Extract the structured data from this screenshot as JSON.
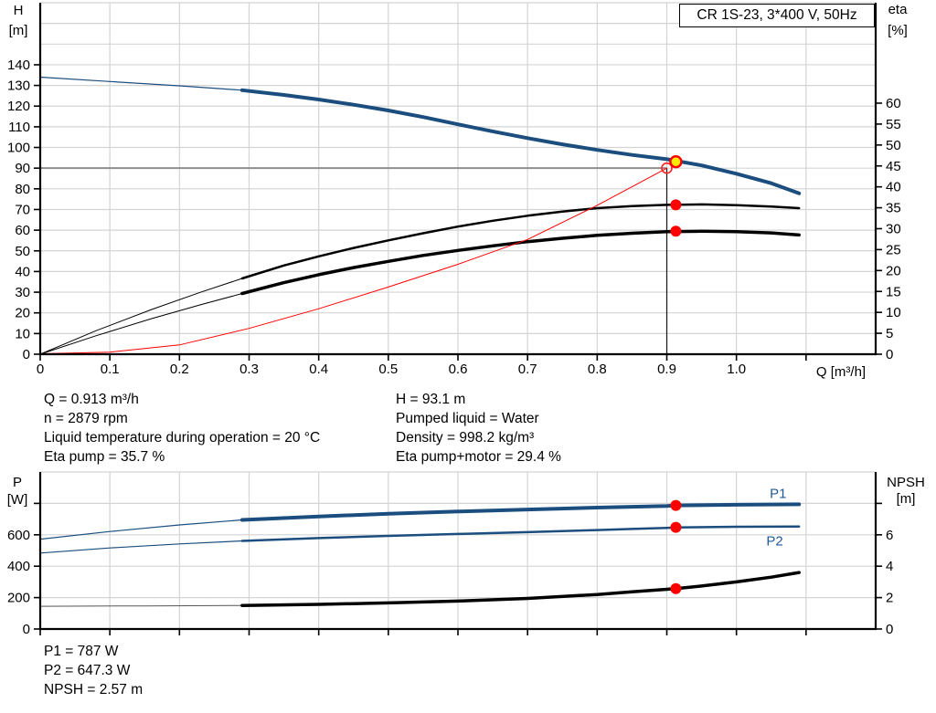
{
  "title_box": {
    "text": "CR 1S-23, 3*400 V, 50Hz"
  },
  "info_top_left": {
    "line1": "Q = 0.913 m³/h",
    "line2": "n = 2879 rpm",
    "line3": "Liquid temperature during operation = 20 °C",
    "line4": "Eta pump = 35.7 %"
  },
  "info_top_right": {
    "line1": "H = 93.1 m",
    "line2": "Pumped liquid = Water",
    "line3": "Density = 998.2 kg/m³",
    "line4": "Eta pump+motor = 29.4 %"
  },
  "info_bottom": {
    "line1": "P1 = 787 W",
    "line2": "P2 = 647.3 W",
    "line3": "NPSH = 2.57 m"
  },
  "colors": {
    "curve_blue": "#1b4e7e",
    "label_blue": "#1f5a96",
    "curve_black": "#000000",
    "curve_red": "#ff0000",
    "marker_red": "#ff0000",
    "marker_yellow": "#ffeb00",
    "grid": "#d4d4d4",
    "crosshair_h": "#8f8f8f",
    "crosshair_v": "#1a1a1a"
  },
  "chart_data": [
    {
      "type": "line",
      "name": "chart-qh-eta",
      "x_axis": {
        "label": "Q [m³/h]",
        "min": 0,
        "max": 1.2,
        "tick_step": 0.1,
        "tick_max": 1.1,
        "label_max": 1.0,
        "decimals": 1
      },
      "left_axis": {
        "label": "H",
        "unit": "[m]",
        "min": 0,
        "max": 170,
        "tick_step": 10,
        "tick_max": 140,
        "label_max": 140,
        "decimals": 0
      },
      "right_axis": {
        "label": "eta",
        "unit": "[%]",
        "min": 0,
        "max": 84,
        "tick_step": 5,
        "tick_max": 60,
        "label_max": 60,
        "decimals": 0
      },
      "crosshair": {
        "x": 0.9,
        "value": 90,
        "axis": "left"
      },
      "series": [
        {
          "name": "head-curve-thin",
          "axis": "left",
          "color": "#1b4e7e",
          "width": 1.2,
          "points": [
            [
              0,
              134
            ],
            [
              0.1,
              131.9
            ],
            [
              0.2,
              129.8
            ],
            [
              0.29,
              127.7
            ]
          ]
        },
        {
          "name": "head-curve",
          "axis": "left",
          "color": "#1b4e7e",
          "width": 4,
          "points": [
            [
              0.29,
              127.7
            ],
            [
              0.35,
              125.4
            ],
            [
              0.4,
              123.2
            ],
            [
              0.45,
              120.7
            ],
            [
              0.5,
              117.9
            ],
            [
              0.55,
              114.7
            ],
            [
              0.6,
              111.2
            ],
            [
              0.65,
              107.8
            ],
            [
              0.7,
              104.5
            ],
            [
              0.75,
              101.5
            ],
            [
              0.8,
              98.8
            ],
            [
              0.85,
              96.4
            ],
            [
              0.9,
              94.3
            ],
            [
              0.95,
              91.3
            ],
            [
              1.0,
              87.3
            ],
            [
              1.05,
              82.7
            ],
            [
              1.09,
              77.8
            ]
          ]
        },
        {
          "name": "eta-pump-curve-thin",
          "axis": "right",
          "color": "#000000",
          "width": 1,
          "points": [
            [
              0,
              0
            ],
            [
              0.08,
              5.6
            ],
            [
              0.16,
              10.7
            ],
            [
              0.23,
              14.8
            ],
            [
              0.29,
              18.1
            ]
          ]
        },
        {
          "name": "eta-pump-curve",
          "axis": "right",
          "color": "#000000",
          "width": 2.5,
          "points": [
            [
              0.29,
              18.1
            ],
            [
              0.35,
              21.2
            ],
            [
              0.4,
              23.4
            ],
            [
              0.45,
              25.4
            ],
            [
              0.5,
              27.2
            ],
            [
              0.55,
              28.9
            ],
            [
              0.6,
              30.5
            ],
            [
              0.65,
              31.9
            ],
            [
              0.7,
              33.1
            ],
            [
              0.75,
              34.1
            ],
            [
              0.8,
              34.9
            ],
            [
              0.85,
              35.4
            ],
            [
              0.9,
              35.7
            ],
            [
              0.95,
              35.8
            ],
            [
              1.0,
              35.6
            ],
            [
              1.05,
              35.3
            ],
            [
              1.09,
              34.9
            ]
          ]
        },
        {
          "name": "eta-pump-motor-curve-thin",
          "axis": "right",
          "color": "#000000",
          "width": 1,
          "points": [
            [
              0,
              0
            ],
            [
              0.08,
              4.4
            ],
            [
              0.16,
              8.5
            ],
            [
              0.23,
              11.8
            ],
            [
              0.29,
              14.5
            ]
          ]
        },
        {
          "name": "eta-pump-motor-curve",
          "axis": "right",
          "color": "#000000",
          "width": 3.5,
          "points": [
            [
              0.29,
              14.5
            ],
            [
              0.35,
              17.1
            ],
            [
              0.4,
              19.0
            ],
            [
              0.45,
              20.7
            ],
            [
              0.5,
              22.2
            ],
            [
              0.55,
              23.6
            ],
            [
              0.6,
              24.8
            ],
            [
              0.65,
              25.9
            ],
            [
              0.7,
              26.9
            ],
            [
              0.75,
              27.7
            ],
            [
              0.8,
              28.4
            ],
            [
              0.85,
              28.9
            ],
            [
              0.9,
              29.3
            ],
            [
              0.95,
              29.4
            ],
            [
              1.0,
              29.3
            ],
            [
              1.05,
              29.0
            ],
            [
              1.09,
              28.5
            ]
          ]
        },
        {
          "name": "duty-eta-red-curve",
          "axis": "left",
          "color": "#ff0000",
          "width": 1,
          "points": [
            [
              0,
              0.2
            ],
            [
              0.1,
              1
            ],
            [
              0.2,
              4.5
            ],
            [
              0.3,
              12.5
            ],
            [
              0.4,
              22
            ],
            [
              0.5,
              32.5
            ],
            [
              0.6,
              43.5
            ],
            [
              0.7,
              55.5
            ],
            [
              0.8,
              72
            ],
            [
              0.9,
              90
            ]
          ]
        }
      ],
      "markers": [
        {
          "name": "duty-target-ring",
          "shape": "ring",
          "x": 0.9,
          "value": 90,
          "axis": "left",
          "color": "#ff2020",
          "r": 5.5
        },
        {
          "name": "duty-point",
          "shape": "duty",
          "x": 0.913,
          "value": 93.1,
          "axis": "left",
          "fill": "#ffeb00",
          "ring": "#ff0000",
          "r": 6
        },
        {
          "name": "eta-pump-point",
          "shape": "dot",
          "x": 0.913,
          "value": 35.7,
          "axis": "right",
          "color": "#ff0000",
          "r": 6
        },
        {
          "name": "eta-pump-motor-point",
          "shape": "dot",
          "x": 0.913,
          "value": 29.4,
          "axis": "right",
          "color": "#ff0000",
          "r": 6
        }
      ],
      "point_labels": []
    },
    {
      "type": "line",
      "name": "chart-power-npsh",
      "x_axis": {
        "label": "",
        "min": 0,
        "max": 1.2,
        "tick_step": 0.1,
        "tick_max": 1.1,
        "label_max": -1,
        "decimals": 1
      },
      "left_axis": {
        "label": "P",
        "unit": "[W]",
        "min": 0,
        "max": 1000,
        "tick_step": 200,
        "tick_max": 800,
        "label_max": 600,
        "decimals": 0
      },
      "right_axis": {
        "label": "NPSH",
        "unit": "[m]",
        "min": 0,
        "max": 10,
        "tick_step": 2,
        "tick_max": 8,
        "label_max": 6,
        "decimals": 0
      },
      "crosshair": null,
      "series": [
        {
          "name": "p1-curve-thin",
          "axis": "left",
          "color": "#1b4e7e",
          "width": 1.2,
          "points": [
            [
              0,
              572
            ],
            [
              0.1,
              621
            ],
            [
              0.2,
              663
            ],
            [
              0.29,
              695
            ]
          ]
        },
        {
          "name": "p1-curve",
          "axis": "left",
          "color": "#1b4e7e",
          "width": 4,
          "points": [
            [
              0.29,
              695
            ],
            [
              0.4,
              717
            ],
            [
              0.5,
              734
            ],
            [
              0.6,
              748
            ],
            [
              0.7,
              761
            ],
            [
              0.8,
              773
            ],
            [
              0.9,
              784
            ],
            [
              0.913,
              787
            ],
            [
              1.0,
              791
            ],
            [
              1.09,
              794
            ]
          ]
        },
        {
          "name": "p2-curve-thin",
          "axis": "left",
          "color": "#1b4e7e",
          "width": 1.2,
          "points": [
            [
              0,
              484
            ],
            [
              0.1,
              516
            ],
            [
              0.2,
              542
            ],
            [
              0.29,
              561
            ]
          ]
        },
        {
          "name": "p2-curve",
          "axis": "left",
          "color": "#1b4e7e",
          "width": 2.5,
          "points": [
            [
              0.29,
              561
            ],
            [
              0.4,
              579
            ],
            [
              0.5,
              593
            ],
            [
              0.6,
              605
            ],
            [
              0.7,
              617
            ],
            [
              0.8,
              630
            ],
            [
              0.85,
              637
            ],
            [
              0.9,
              644
            ],
            [
              0.913,
              647.3
            ],
            [
              1.0,
              651
            ],
            [
              1.09,
              653
            ]
          ]
        },
        {
          "name": "npsh-curve-thin",
          "axis": "right",
          "color": "#555555",
          "width": 1,
          "points": [
            [
              0,
              1.45
            ],
            [
              0.15,
              1.47
            ],
            [
              0.29,
              1.5
            ]
          ]
        },
        {
          "name": "npsh-curve",
          "axis": "right",
          "color": "#000000",
          "width": 3.5,
          "points": [
            [
              0.29,
              1.5
            ],
            [
              0.4,
              1.57
            ],
            [
              0.5,
              1.66
            ],
            [
              0.6,
              1.78
            ],
            [
              0.7,
              1.95
            ],
            [
              0.8,
              2.2
            ],
            [
              0.85,
              2.37
            ],
            [
              0.9,
              2.53
            ],
            [
              0.913,
              2.57
            ],
            [
              0.95,
              2.74
            ],
            [
              1.0,
              3.0
            ],
            [
              1.05,
              3.3
            ],
            [
              1.09,
              3.6
            ]
          ]
        }
      ],
      "markers": [
        {
          "name": "p1-point",
          "shape": "dot",
          "x": 0.913,
          "value": 787,
          "axis": "left",
          "color": "#ff0000",
          "r": 6
        },
        {
          "name": "p2-point",
          "shape": "dot",
          "x": 0.913,
          "value": 647.3,
          "axis": "left",
          "color": "#ff0000",
          "r": 6
        },
        {
          "name": "npsh-point",
          "shape": "dot",
          "x": 0.913,
          "value": 2.57,
          "axis": "right",
          "color": "#ff0000",
          "r": 6
        }
      ],
      "point_labels": [
        {
          "name": "p1-label",
          "text": "P1",
          "x": 1.06,
          "value": 862,
          "axis": "left",
          "color": "#1f5a96"
        },
        {
          "name": "p2-label",
          "text": "P2",
          "x": 1.055,
          "value": 560,
          "axis": "left",
          "color": "#1f5a96"
        }
      ]
    }
  ]
}
